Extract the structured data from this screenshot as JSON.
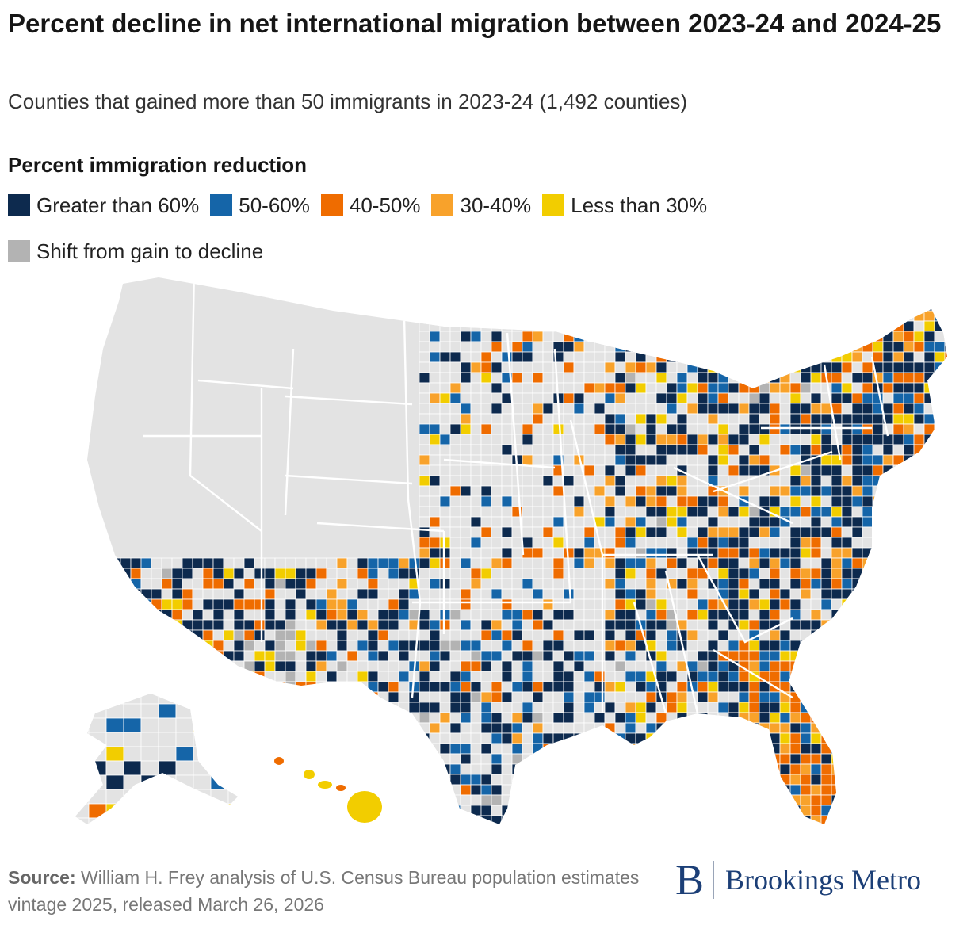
{
  "title": "Percent decline in net international migration between 2023-24 and 2024-25",
  "subtitle": "Counties that gained more than 50 immigrants in 2023-24 (1,492 counties)",
  "legend": {
    "title": "Percent immigration reduction",
    "items": [
      {
        "label": "Greater than 60%",
        "color": "#0d2a4e"
      },
      {
        "label": "50-60%",
        "color": "#1565a8"
      },
      {
        "label": "40-50%",
        "color": "#ef6c00"
      },
      {
        "label": "30-40%",
        "color": "#f8a22b"
      },
      {
        "label": "Less than 30%",
        "color": "#f2cd00"
      },
      {
        "label": "Shift from gain to decline",
        "color": "#b3b3b3"
      }
    ]
  },
  "map": {
    "no_data_color": "#e3e3e3",
    "border_color": "#ffffff",
    "regions": [
      "Contiguous U.S.",
      "Alaska",
      "Hawaii"
    ]
  },
  "source": {
    "label": "Source:",
    "text": "William H. Frey analysis of U.S. Census Bureau population estimates vintage 2025, released March 26, 2026"
  },
  "brand": {
    "mark": "B",
    "name": "Brookings Metro",
    "color": "#1c3f77"
  }
}
